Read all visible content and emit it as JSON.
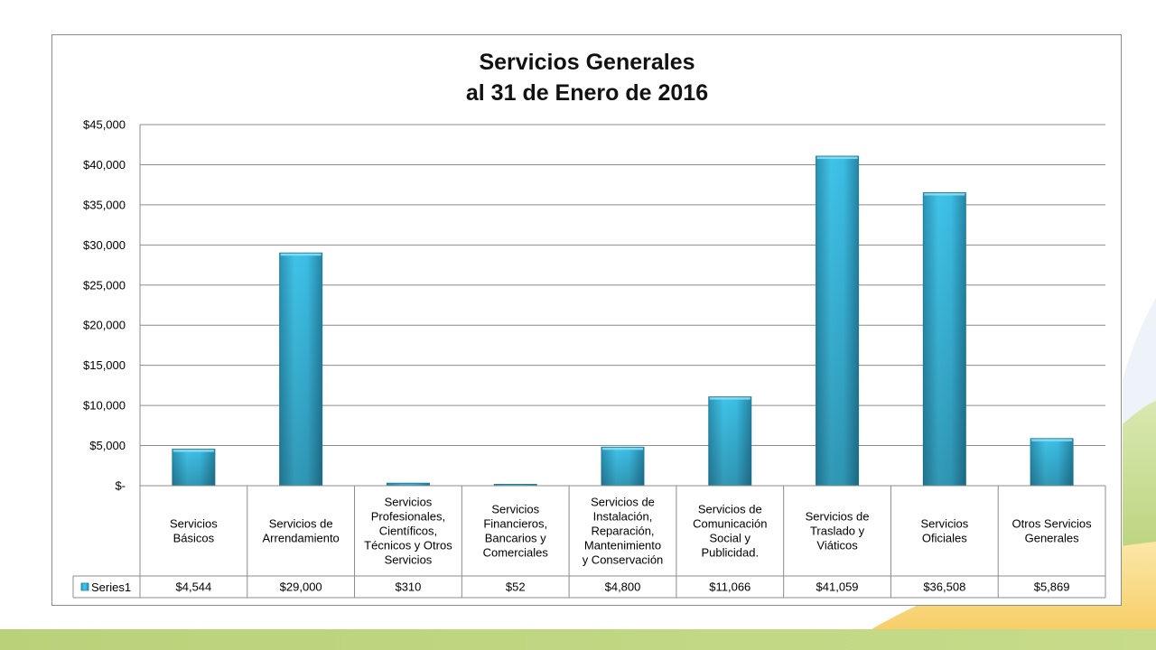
{
  "chart_data": {
    "type": "bar",
    "title": [
      "Servicios Generales",
      "al 31 de Enero de 2016"
    ],
    "xlabel": "",
    "ylabel": "",
    "ylim": [
      0,
      45000
    ],
    "y_ticks": [
      0,
      5000,
      10000,
      15000,
      20000,
      25000,
      30000,
      35000,
      40000,
      45000
    ],
    "y_tick_labels": [
      "$-",
      "$5,000",
      "$10,000",
      "$15,000",
      "$20,000",
      "$25,000",
      "$30,000",
      "$35,000",
      "$40,000",
      "$45,000"
    ],
    "grid": true,
    "legend": "data-table",
    "categories": [
      [
        "Servicios",
        "Básicos"
      ],
      [
        "Servicios de",
        "Arrendamiento"
      ],
      [
        "Servicios",
        "Profesionales,",
        "Científicos,",
        "Técnicos y Otros",
        "Servicios"
      ],
      [
        "Servicios",
        "Financieros,",
        "Bancarios y",
        "Comerciales"
      ],
      [
        "Servicios de",
        "Instalación,",
        "Reparación,",
        "Mantenimiento",
        "y Conservación"
      ],
      [
        "Servicios de",
        "Comunicación",
        "Social y",
        "Publicidad."
      ],
      [
        "Servicios de",
        "Traslado y",
        "Viáticos"
      ],
      [
        "Servicios",
        "Oficiales"
      ],
      [
        "Otros Servicios",
        "Generales"
      ]
    ],
    "series": [
      {
        "name": "Series1",
        "color": "#3bbde4",
        "values": [
          4544,
          29000,
          310,
          52,
          4800,
          11066,
          41059,
          36508,
          5869
        ],
        "value_labels": [
          "$4,544",
          "$29,000",
          "$310",
          "$52",
          "$4,800",
          "$11,066",
          "$41,059",
          "$36,508",
          "$5,869"
        ]
      }
    ]
  }
}
